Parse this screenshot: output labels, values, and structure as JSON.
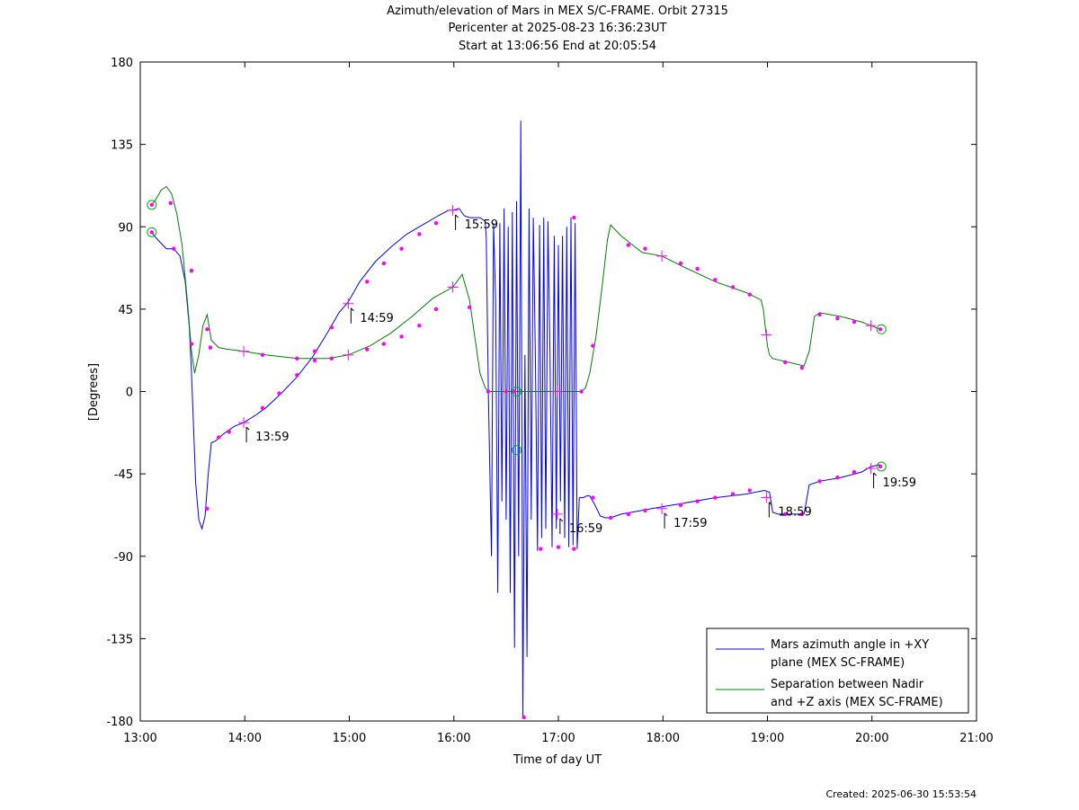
{
  "chart_data": {
    "type": "line",
    "title": "Azimuth/elevation of Mars in MEX S/C-FRAME.  Orbit 27315",
    "subtitle_lines": [
      "Pericenter at 2025-08-23 16:36:23UT",
      "Start at 13:06:56 End at 20:05:54"
    ],
    "xlabel": "Time of day UT",
    "ylabel": "[Degrees]",
    "xlim": [
      13.0,
      21.0
    ],
    "ylim": [
      -180,
      180
    ],
    "x_ticks": [
      13,
      14,
      15,
      16,
      17,
      18,
      19,
      20,
      21
    ],
    "x_tick_labels": [
      "13:00",
      "14:00",
      "15:00",
      "16:00",
      "17:00",
      "18:00",
      "19:00",
      "20:00",
      "21:00"
    ],
    "y_ticks": [
      180,
      135,
      90,
      45,
      0,
      -45,
      -90,
      -135,
      -180
    ],
    "y_tick_labels": [
      "180",
      "135",
      "90",
      "45",
      "0",
      "-45",
      "-90",
      "-135",
      "-180"
    ],
    "grid": false,
    "legend_position": "bottom-right",
    "series": [
      {
        "name": "Mars azimuth angle in +XY plane (MEX SC-FRAME)",
        "legend_lines": [
          "Mars azimuth angle in +XY",
          "plane (MEX SC-FRAME)"
        ],
        "color": "#0000ff",
        "x": [
          13.11,
          13.15,
          13.25,
          13.32,
          13.38,
          13.43,
          13.47,
          13.49,
          13.51,
          13.53,
          13.56,
          13.59,
          13.62,
          13.65,
          13.68,
          13.72,
          13.8,
          13.9,
          13.99,
          14.1,
          14.2,
          14.35,
          14.5,
          14.65,
          14.8,
          14.9,
          14.99,
          15.1,
          15.25,
          15.4,
          15.55,
          15.7,
          15.85,
          15.95,
          15.99,
          16.05,
          16.1,
          16.15,
          16.2,
          16.25,
          16.3,
          16.31,
          16.33,
          16.36,
          16.38,
          16.4,
          16.42,
          16.44,
          16.46,
          16.48,
          16.5,
          16.52,
          16.54,
          16.56,
          16.58,
          16.6,
          16.62,
          16.64,
          16.66,
          16.68,
          16.7,
          16.72,
          16.74,
          16.76,
          16.78,
          16.8,
          16.82,
          16.84,
          16.86,
          16.88,
          16.9,
          16.92,
          16.94,
          16.96,
          16.98,
          17.0,
          17.02,
          17.04,
          17.06,
          17.08,
          17.1,
          17.12,
          17.14,
          17.16,
          17.18,
          17.2,
          17.22,
          17.24,
          17.27,
          17.3,
          17.35,
          17.4,
          17.45,
          17.5,
          17.6,
          17.8,
          17.99,
          18.2,
          18.5,
          18.8,
          18.97,
          19.02,
          19.05,
          19.1,
          19.35,
          19.4,
          19.5,
          19.7,
          19.9,
          19.99,
          20.08
        ],
        "y": [
          87,
          84,
          78,
          78,
          74,
          60,
          35,
          10,
          -20,
          -50,
          -70,
          -75,
          -68,
          -45,
          -28,
          -27,
          -23,
          -19,
          -17,
          -13,
          -9,
          -1,
          8,
          19,
          33,
          43,
          49,
          60,
          71,
          79,
          86,
          91,
          96,
          99,
          99,
          100,
          96,
          95,
          95,
          95,
          93,
          84,
          0,
          -90,
          92,
          50,
          -110,
          92,
          -60,
          100,
          -70,
          90,
          -110,
          98,
          -140,
          104,
          -90,
          148,
          -178,
          20,
          -145,
          100,
          -70,
          95,
          20,
          -87,
          91,
          -80,
          95,
          -75,
          93,
          20,
          -85,
          85,
          -75,
          80,
          -60,
          85,
          -80,
          90,
          -85,
          95,
          -84,
          92,
          -86,
          -58,
          -58,
          -58,
          -57,
          -57,
          -62,
          -68,
          -69,
          -69,
          -67,
          -65,
          -63,
          -61,
          -58,
          -56,
          -54,
          -55,
          -66,
          -67,
          -67,
          -51,
          -49,
          -47,
          -44,
          -41,
          -40
        ]
      },
      {
        "name": "Separation between Nadir and +Z axis (MEX SC-FRAME)",
        "legend_lines": [
          "Separation between Nadir",
          "and +Z axis (MEX SC-FRAME)"
        ],
        "color": "#008000",
        "x": [
          13.11,
          13.15,
          13.2,
          13.25,
          13.3,
          13.35,
          13.4,
          13.45,
          13.49,
          13.52,
          13.56,
          13.6,
          13.64,
          13.68,
          13.75,
          13.85,
          13.99,
          14.2,
          14.5,
          14.8,
          14.99,
          15.2,
          15.4,
          15.6,
          15.8,
          15.99,
          16.08,
          16.15,
          16.2,
          16.25,
          16.3,
          16.33,
          16.36,
          17.22,
          17.26,
          17.3,
          17.36,
          17.42,
          17.47,
          17.5,
          17.6,
          17.8,
          17.99,
          18.2,
          18.5,
          18.8,
          18.94,
          18.96,
          18.98,
          19.0,
          19.02,
          19.05,
          19.2,
          19.35,
          19.4,
          19.45,
          19.5,
          19.7,
          19.9,
          19.99,
          20.08
        ],
        "y": [
          102,
          105,
          110,
          112,
          108,
          97,
          80,
          50,
          22,
          10,
          20,
          36,
          42,
          28,
          24,
          23,
          22,
          20,
          18,
          18,
          20,
          25,
          32,
          41,
          51,
          57,
          64,
          50,
          30,
          10,
          2,
          0,
          0,
          0,
          2,
          10,
          30,
          58,
          83,
          91,
          85,
          76,
          74,
          68,
          60,
          54,
          50,
          45,
          35,
          25,
          20,
          18,
          16,
          14,
          22,
          41,
          43,
          41,
          38,
          36,
          34
        ]
      }
    ],
    "markers": {
      "color": "#ff00ff",
      "dots": [
        {
          "x": 13.11,
          "y": 87
        },
        {
          "x": 13.32,
          "y": 78
        },
        {
          "x": 13.49,
          "y": 66
        },
        {
          "x": 13.49,
          "y": 26
        },
        {
          "x": 13.64,
          "y": -64
        },
        {
          "x": 13.75,
          "y": -25
        },
        {
          "x": 13.85,
          "y": -22
        },
        {
          "x": 14.17,
          "y": -9
        },
        {
          "x": 14.33,
          "y": -1
        },
        {
          "x": 14.5,
          "y": 9
        },
        {
          "x": 14.67,
          "y": 22
        },
        {
          "x": 14.83,
          "y": 35
        },
        {
          "x": 15.17,
          "y": 60
        },
        {
          "x": 15.33,
          "y": 70
        },
        {
          "x": 15.5,
          "y": 78
        },
        {
          "x": 15.67,
          "y": 86
        },
        {
          "x": 15.83,
          "y": 92
        },
        {
          "x": 13.11,
          "y": 102
        },
        {
          "x": 13.29,
          "y": 103
        },
        {
          "x": 13.64,
          "y": 34
        },
        {
          "x": 13.67,
          "y": 24
        },
        {
          "x": 14.17,
          "y": 20
        },
        {
          "x": 14.5,
          "y": 18
        },
        {
          "x": 14.67,
          "y": 17
        },
        {
          "x": 14.83,
          "y": 18
        },
        {
          "x": 15.17,
          "y": 23
        },
        {
          "x": 15.33,
          "y": 26
        },
        {
          "x": 15.5,
          "y": 30
        },
        {
          "x": 15.67,
          "y": 36
        },
        {
          "x": 15.83,
          "y": 45
        },
        {
          "x": 16.15,
          "y": 46
        },
        {
          "x": 16.33,
          "y": 0
        },
        {
          "x": 16.5,
          "y": 0
        },
        {
          "x": 16.58,
          "y": 0
        },
        {
          "x": 16.67,
          "y": -178
        },
        {
          "x": 16.83,
          "y": -86
        },
        {
          "x": 17.0,
          "y": -85
        },
        {
          "x": 17.15,
          "y": -86
        },
        {
          "x": 17.15,
          "y": 95
        },
        {
          "x": 17.22,
          "y": 0
        },
        {
          "x": 17.33,
          "y": 25
        },
        {
          "x": 17.33,
          "y": -58
        },
        {
          "x": 17.5,
          "y": -69
        },
        {
          "x": 17.67,
          "y": 80
        },
        {
          "x": 17.67,
          "y": -67
        },
        {
          "x": 17.83,
          "y": 78
        },
        {
          "x": 17.83,
          "y": -65
        },
        {
          "x": 18.17,
          "y": 70
        },
        {
          "x": 18.17,
          "y": -62
        },
        {
          "x": 18.33,
          "y": 67
        },
        {
          "x": 18.33,
          "y": -60
        },
        {
          "x": 18.5,
          "y": 61
        },
        {
          "x": 18.5,
          "y": -58
        },
        {
          "x": 18.67,
          "y": 57
        },
        {
          "x": 18.67,
          "y": -56
        },
        {
          "x": 18.83,
          "y": 53
        },
        {
          "x": 18.83,
          "y": -54
        },
        {
          "x": 19.17,
          "y": 16
        },
        {
          "x": 19.17,
          "y": -67
        },
        {
          "x": 19.33,
          "y": 13
        },
        {
          "x": 19.33,
          "y": -67
        },
        {
          "x": 19.5,
          "y": 42
        },
        {
          "x": 19.5,
          "y": -49
        },
        {
          "x": 19.67,
          "y": 40
        },
        {
          "x": 19.67,
          "y": -47
        },
        {
          "x": 19.83,
          "y": 38
        },
        {
          "x": 19.83,
          "y": -44
        },
        {
          "x": 20.08,
          "y": 34
        },
        {
          "x": 20.08,
          "y": -41
        }
      ],
      "hour_crosses": [
        {
          "x": 13.99,
          "y": -17
        },
        {
          "x": 13.99,
          "y": 22
        },
        {
          "x": 14.99,
          "y": 48
        },
        {
          "x": 14.99,
          "y": 20
        },
        {
          "x": 15.99,
          "y": 99
        },
        {
          "x": 15.99,
          "y": 57
        },
        {
          "x": 16.99,
          "y": 0
        },
        {
          "x": 16.99,
          "y": -67
        },
        {
          "x": 17.99,
          "y": 74
        },
        {
          "x": 17.99,
          "y": -64
        },
        {
          "x": 18.99,
          "y": 31
        },
        {
          "x": 18.99,
          "y": -58
        },
        {
          "x": 19.99,
          "y": 36
        },
        {
          "x": 19.99,
          "y": -42
        }
      ],
      "start_end_circles": [
        {
          "x": 13.11,
          "y": 87
        },
        {
          "x": 13.11,
          "y": 102
        },
        {
          "x": 20.09,
          "y": 34
        },
        {
          "x": 20.09,
          "y": -41
        },
        {
          "x": 16.6,
          "y": -32
        },
        {
          "x": 16.6,
          "y": 0
        }
      ]
    },
    "annotations": [
      {
        "text": "13:59",
        "x": 13.99,
        "y": -17
      },
      {
        "text": "14:59",
        "x": 14.99,
        "y": 48
      },
      {
        "text": "15:59",
        "x": 15.99,
        "y": 99
      },
      {
        "text": "16:59",
        "x": 16.99,
        "y": -67
      },
      {
        "text": "17:59",
        "x": 17.99,
        "y": -64
      },
      {
        "text": "18:59",
        "x": 18.99,
        "y": -58
      },
      {
        "text": "19:59",
        "x": 19.99,
        "y": -42
      }
    ]
  },
  "footer": {
    "created": "Created: 2025-06-30 15:53:54"
  }
}
